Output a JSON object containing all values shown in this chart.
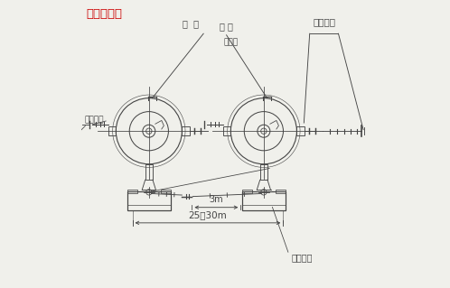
{
  "title": "外形尺寸图",
  "title_color": "#cc0000",
  "bg_color": "#f0f0eb",
  "line_color": "#444444",
  "labels": {
    "zha_guan": "扎  关",
    "tuo_huan": "托 环",
    "gang_si_sheng": "钢丝绳",
    "tiao_zheng_luo_shuan": "调整螺栓",
    "la_sheng_kai_guan": "拉绳开关",
    "an_zhuang_zhi_jia": "安装支架",
    "dim_3m": "3m",
    "dim_25_30m": "25～30m"
  },
  "d1x": 0.235,
  "d1y": 0.545,
  "d2x": 0.635,
  "d2y": 0.545,
  "r_outer": 0.115,
  "r_inner": 0.068,
  "r_center": 0.022,
  "r_center2": 0.01
}
